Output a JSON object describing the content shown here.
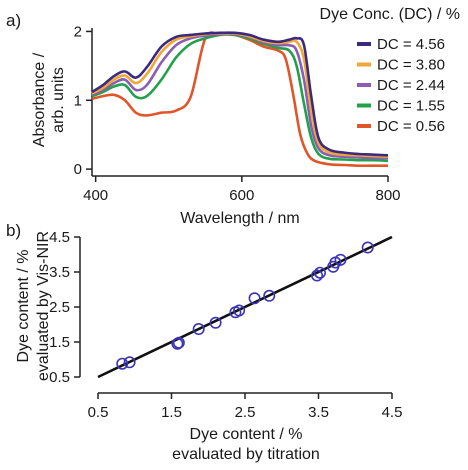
{
  "chart_data": [
    {
      "panel_label": "a)",
      "type": "line",
      "xlabel": "Wavelength / nm",
      "ylabel_line1": "Absorbance /",
      "ylabel_line2": "arb. units",
      "xlim": [
        395,
        800
      ],
      "ylim": [
        -0.1,
        2.05
      ],
      "xticks": [
        400,
        600,
        800
      ],
      "yticks": [
        0,
        1,
        2
      ],
      "legend_title": "Dye Conc. (DC) / %",
      "legend_position": "right",
      "series": [
        {
          "name": "DC = 4.56",
          "color": "#3b2a7e",
          "x": [
            395,
            410,
            425,
            440,
            455,
            470,
            490,
            510,
            530,
            550,
            570,
            590,
            610,
            630,
            650,
            665,
            675,
            685,
            695,
            705,
            720,
            740,
            760,
            780,
            800
          ],
          "y": [
            1.12,
            1.22,
            1.35,
            1.42,
            1.33,
            1.48,
            1.78,
            1.92,
            1.95,
            1.97,
            1.98,
            1.98,
            1.95,
            1.88,
            1.85,
            1.88,
            1.9,
            1.8,
            1.05,
            0.45,
            0.28,
            0.24,
            0.22,
            0.21,
            0.2
          ]
        },
        {
          "name": "DC = 3.80",
          "color": "#f0a733",
          "x": [
            395,
            410,
            425,
            440,
            455,
            470,
            490,
            510,
            530,
            550,
            570,
            590,
            610,
            630,
            650,
            665,
            675,
            685,
            695,
            705,
            720,
            740,
            760,
            780,
            800
          ],
          "y": [
            1.1,
            1.18,
            1.3,
            1.36,
            1.25,
            1.38,
            1.7,
            1.88,
            1.93,
            1.96,
            1.97,
            1.97,
            1.93,
            1.86,
            1.83,
            1.85,
            1.85,
            1.6,
            0.85,
            0.38,
            0.24,
            0.21,
            0.2,
            0.19,
            0.18
          ]
        },
        {
          "name": "DC = 2.44",
          "color": "#8b5db5",
          "x": [
            395,
            410,
            425,
            440,
            455,
            470,
            490,
            510,
            530,
            550,
            570,
            590,
            610,
            630,
            650,
            665,
            675,
            685,
            695,
            705,
            720,
            740,
            760,
            780,
            800
          ],
          "y": [
            1.08,
            1.15,
            1.25,
            1.3,
            1.15,
            1.22,
            1.55,
            1.8,
            1.9,
            1.94,
            1.96,
            1.96,
            1.92,
            1.84,
            1.8,
            1.8,
            1.72,
            1.3,
            0.62,
            0.3,
            0.2,
            0.18,
            0.17,
            0.16,
            0.16
          ]
        },
        {
          "name": "DC = 1.55",
          "color": "#22a04a",
          "x": [
            395,
            410,
            425,
            440,
            455,
            470,
            490,
            510,
            530,
            550,
            570,
            590,
            610,
            630,
            650,
            665,
            675,
            685,
            695,
            705,
            720,
            740,
            760,
            780,
            800
          ],
          "y": [
            1.06,
            1.12,
            1.2,
            1.22,
            1.05,
            1.06,
            1.3,
            1.62,
            1.82,
            1.9,
            1.95,
            1.95,
            1.9,
            1.82,
            1.76,
            1.72,
            1.5,
            0.95,
            0.45,
            0.22,
            0.15,
            0.14,
            0.13,
            0.13,
            0.12
          ]
        },
        {
          "name": "DC = 0.56",
          "color": "#e0552a",
          "x": [
            395,
            410,
            425,
            440,
            455,
            470,
            490,
            510,
            530,
            550,
            570,
            590,
            610,
            630,
            650,
            660,
            670,
            680,
            690,
            700,
            720,
            740,
            760,
            780,
            800
          ],
          "y": [
            1.02,
            1.06,
            1.08,
            1.0,
            0.82,
            0.78,
            0.82,
            0.85,
            1.05,
            1.9,
            1.96,
            1.95,
            1.88,
            1.78,
            1.72,
            1.6,
            1.1,
            0.5,
            0.22,
            0.12,
            0.07,
            0.06,
            0.05,
            0.05,
            0.05
          ]
        }
      ]
    },
    {
      "panel_label": "b)",
      "type": "scatter",
      "xlabel_line1": "Dye content / %",
      "xlabel_line2": "evaluated by titration",
      "ylabel_line1": "Dye content / %",
      "ylabel_line2": "evaluated by Vis-NIR",
      "xlim": [
        0.5,
        4.5
      ],
      "ylim": [
        0.5,
        4.5
      ],
      "xticks": [
        "0.5",
        "1.5",
        "2.5",
        "3.5",
        "4.5"
      ],
      "yticks": [
        "0.5",
        "1.5",
        "2.5",
        "3.5",
        "4.5"
      ],
      "points_color": "#3b35b5",
      "line_color": "#111111",
      "points": {
        "x": [
          0.83,
          0.93,
          1.58,
          1.6,
          1.87,
          2.1,
          2.37,
          2.42,
          2.63,
          2.83,
          3.48,
          3.52,
          3.7,
          3.73,
          3.8,
          4.17
        ],
        "y": [
          0.88,
          0.92,
          1.45,
          1.48,
          1.87,
          2.05,
          2.35,
          2.4,
          2.75,
          2.82,
          3.4,
          3.48,
          3.65,
          3.77,
          3.85,
          4.2
        ]
      },
      "fit_line": {
        "x": [
          0.5,
          4.5
        ],
        "y": [
          0.5,
          4.5
        ]
      }
    }
  ]
}
